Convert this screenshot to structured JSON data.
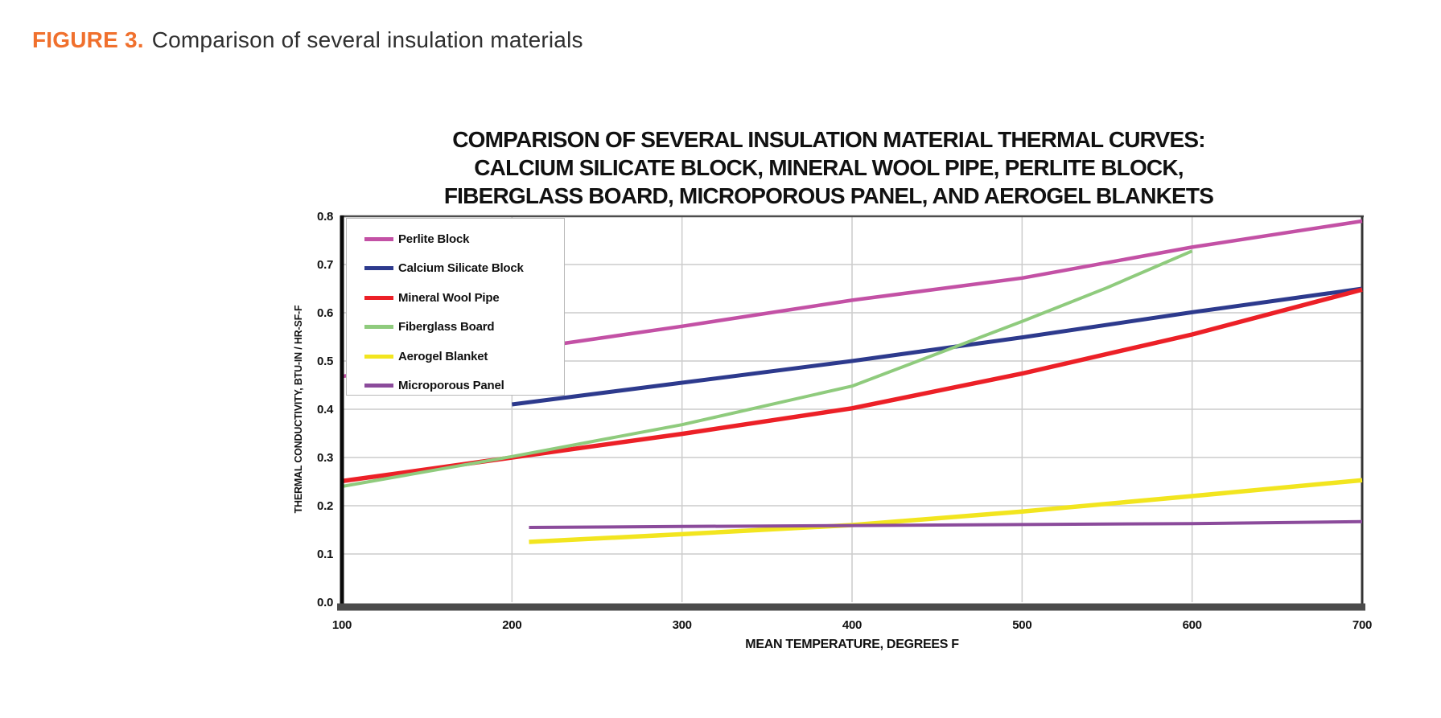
{
  "caption": {
    "highlight": "FIGURE 3.",
    "text": "Comparison of several insulation materials",
    "highlight_color": "#F0702D"
  },
  "chart_data": {
    "type": "line",
    "title_lines": [
      "COMPARISON OF SEVERAL INSULATION MATERIAL THERMAL CURVES:",
      "CALCIUM SILICATE BLOCK,  MINERAL WOOL PIPE, PERLITE BLOCK,",
      "FIBERGLASS BOARD, MICROPOROUS PANEL, AND AEROGEL BLANKETS"
    ],
    "xlabel": "MEAN TEMPERATURE, DEGREES F",
    "ylabel": "THERMAL CONDUCTIVITY, BTU-IN / HR-SF-F",
    "xlim": [
      100,
      700
    ],
    "ylim": [
      0,
      0.8
    ],
    "x_ticks": [
      100,
      200,
      300,
      400,
      500,
      600,
      700
    ],
    "y_ticks": [
      "0.0",
      "0.1",
      "0.2",
      "0.3",
      "0.4",
      "0.5",
      "0.6",
      "0.7",
      "0.8"
    ],
    "grid": true,
    "legend_position": "top-left",
    "grid_color": "#cccccc",
    "series": [
      {
        "name": "Perlite Block",
        "color": "#C351A5",
        "points": [
          [
            100,
            0.468
          ],
          [
            200,
            0.521
          ],
          [
            300,
            0.572
          ],
          [
            400,
            0.626
          ],
          [
            500,
            0.672
          ],
          [
            600,
            0.736
          ],
          [
            700,
            0.79
          ]
        ]
      },
      {
        "name": "Calcium Silicate Block",
        "color": "#2D3A8D",
        "points": [
          [
            200,
            0.41
          ],
          [
            300,
            0.455
          ],
          [
            400,
            0.5
          ],
          [
            500,
            0.549
          ],
          [
            600,
            0.601
          ],
          [
            700,
            0.65
          ]
        ]
      },
      {
        "name": "Mineral Wool Pipe",
        "color": "#EC2027",
        "points": [
          [
            100,
            0.251
          ],
          [
            200,
            0.3
          ],
          [
            300,
            0.349
          ],
          [
            400,
            0.402
          ],
          [
            500,
            0.474
          ],
          [
            600,
            0.555
          ],
          [
            700,
            0.648
          ]
        ]
      },
      {
        "name": "Fiberglass Board",
        "color": "#8FCB7D",
        "points": [
          [
            100,
            0.24
          ],
          [
            200,
            0.302
          ],
          [
            300,
            0.368
          ],
          [
            400,
            0.448
          ],
          [
            500,
            0.582
          ],
          [
            550,
            0.652
          ],
          [
            600,
            0.728
          ]
        ]
      },
      {
        "name": "Aerogel Blanket",
        "color": "#F2E51F",
        "points": [
          [
            210,
            0.125
          ],
          [
            300,
            0.141
          ],
          [
            400,
            0.16
          ],
          [
            500,
            0.188
          ],
          [
            600,
            0.22
          ],
          [
            700,
            0.253
          ]
        ]
      },
      {
        "name": "Microporous Panel",
        "color": "#8B4B9B",
        "points": [
          [
            210,
            0.155
          ],
          [
            300,
            0.157
          ],
          [
            400,
            0.159
          ],
          [
            500,
            0.161
          ],
          [
            600,
            0.163
          ],
          [
            700,
            0.167
          ]
        ]
      }
    ]
  }
}
